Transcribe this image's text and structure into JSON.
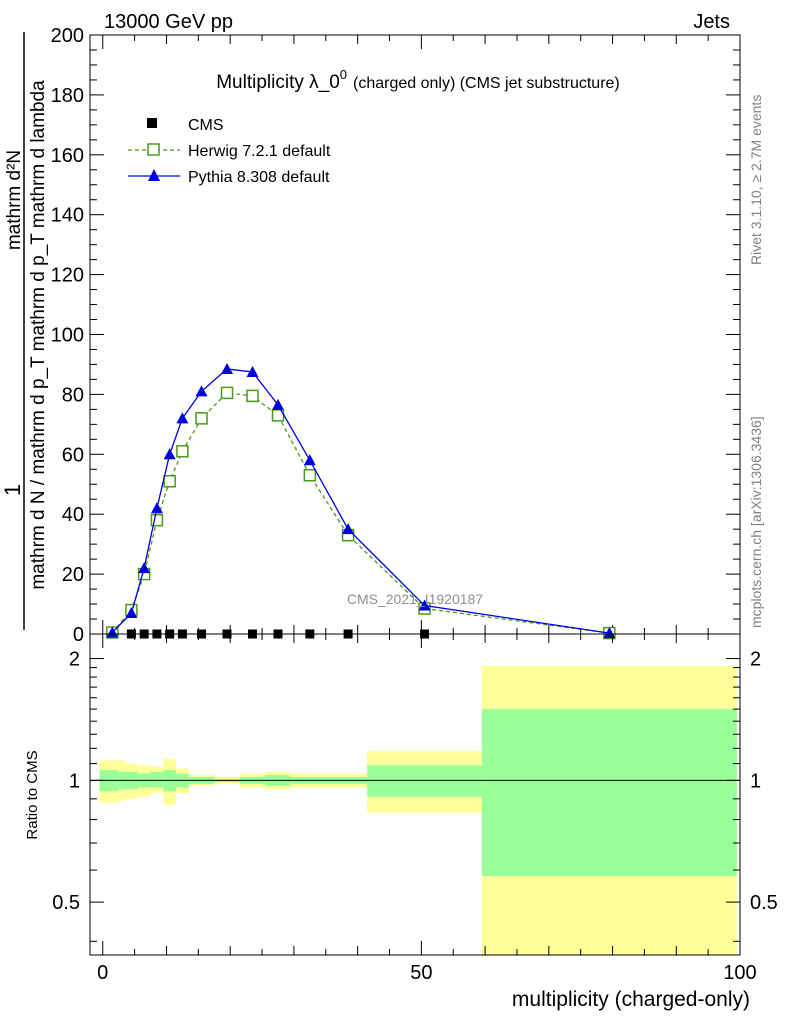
{
  "header": {
    "energy_label": "13000 GeV pp",
    "category_label": "Jets",
    "rivet_label": "Rivet 3.1.10, ≥ 2.7M events",
    "mcplots_label": "mcplots.cern.ch [arXiv:1306.3436]"
  },
  "chart_data": [
    {
      "type": "line",
      "title_main": "Multiplicity λ_0",
      "title_sup": "0",
      "title_small": "(charged only) (CMS jet substructure)",
      "ylabel_num": "1",
      "ylabel_num_right": "mathrm d²N",
      "ylabel_den": "mathrm d N / mathrm d p_T mathrm d p_T mathrm d lambda",
      "watermark": "CMS_2021_I1920187",
      "xlim": [
        -2,
        100
      ],
      "ylim": [
        0,
        200
      ],
      "y_ticks": [
        0,
        20,
        40,
        60,
        80,
        100,
        120,
        140,
        160,
        180,
        200
      ],
      "legend_position": "top-left",
      "legend": [
        "CMS",
        "Herwig 7.2.1 default",
        "Pythia 8.308 default"
      ],
      "series": [
        {
          "name": "CMS",
          "marker": "filled-square",
          "color": "#000000",
          "x": [
            1.5,
            4.5,
            6.5,
            8.5,
            10.5,
            12.5,
            15.5,
            19.5,
            23.5,
            27.5,
            32.5,
            38.5,
            50.5
          ],
          "values": [
            0,
            0,
            0,
            0,
            0,
            0,
            0,
            0,
            0,
            0,
            0,
            0,
            0
          ]
        },
        {
          "name": "Herwig 7.2.1 default",
          "marker": "open-square",
          "color": "#4a9a1a",
          "x": [
            1.5,
            4.5,
            6.5,
            8.5,
            10.5,
            12.5,
            15.5,
            19.5,
            23.5,
            27.5,
            32.5,
            38.5,
            50.5,
            79.5
          ],
          "values": [
            0.5,
            8,
            20,
            38,
            51,
            61,
            72,
            80.5,
            79.5,
            73,
            53,
            33,
            8.5,
            0.3
          ]
        },
        {
          "name": "Pythia 8.308 default",
          "marker": "filled-triangle",
          "color": "#0000dd",
          "x": [
            1.5,
            4.5,
            6.5,
            8.5,
            10.5,
            12.5,
            15.5,
            19.5,
            23.5,
            27.5,
            32.5,
            38.5,
            50.5,
            79.5
          ],
          "values": [
            0.5,
            7,
            22,
            42,
            60,
            72,
            81,
            88.5,
            87.5,
            76.5,
            58,
            35,
            9.5,
            0.3
          ]
        }
      ]
    },
    {
      "type": "area",
      "ylabel": "Ratio to CMS",
      "xlabel": "multiplicity (charged-only)",
      "xlim": [
        -2,
        100
      ],
      "ylim": [
        0.37,
        2.3
      ],
      "y_scale": "log",
      "y_ticks": [
        0.5,
        1,
        2
      ],
      "x_ticks": [
        0,
        50,
        100
      ],
      "reference_line": 1,
      "bands": {
        "edges": [
          -0.5,
          2.5,
          3.5,
          5.5,
          7.5,
          9.5,
          11.5,
          13.5,
          17.5,
          21.5,
          25.5,
          29.5,
          35.5,
          41.5,
          59.5,
          99.5
        ],
        "inner_color": "#99ff99",
        "outer_color": "#ffff99",
        "inner_lo": [
          0.94,
          0.95,
          0.95,
          0.96,
          0.96,
          0.94,
          0.96,
          0.98,
          0.99,
          0.98,
          0.97,
          0.98,
          0.98,
          0.91,
          0.58
        ],
        "inner_hi": [
          1.06,
          1.05,
          1.05,
          1.04,
          1.05,
          1.06,
          1.04,
          1.02,
          1.01,
          1.02,
          1.03,
          1.02,
          1.02,
          1.09,
          1.5
        ],
        "outer_lo": [
          0.88,
          0.89,
          0.9,
          0.91,
          0.93,
          0.87,
          0.93,
          0.97,
          0.98,
          0.96,
          0.95,
          0.96,
          0.96,
          0.83,
          0.37
        ],
        "outer_hi": [
          1.12,
          1.12,
          1.1,
          1.09,
          1.08,
          1.13,
          1.07,
          1.03,
          1.02,
          1.04,
          1.05,
          1.04,
          1.04,
          1.18,
          1.92
        ]
      }
    }
  ]
}
